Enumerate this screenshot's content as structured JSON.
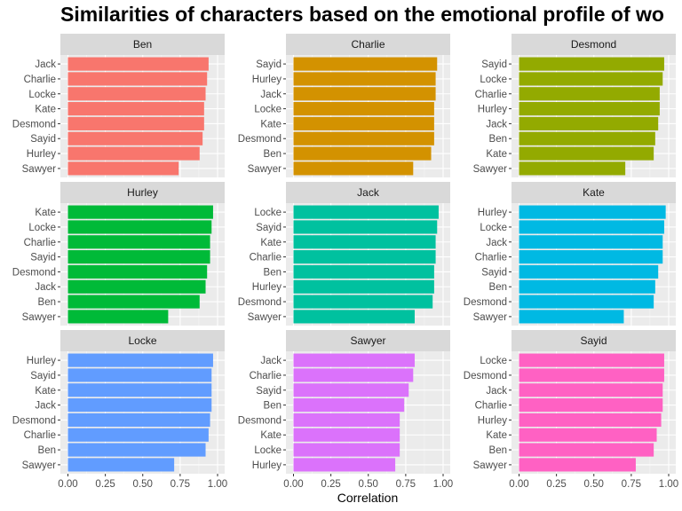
{
  "chart_data": {
    "type": "bar",
    "orientation": "horizontal",
    "title": "Similarities of characters based on the emotional profile of wo",
    "xlabel": "Correlation",
    "xlim": [
      0,
      1
    ],
    "xticks": [
      "0.00",
      "0.25",
      "0.50",
      "0.75",
      "1.00"
    ],
    "grid": true,
    "legend": "none",
    "panels": [
      {
        "name": "Ben",
        "color": "#F8766D",
        "categories": [
          "Jack",
          "Charlie",
          "Locke",
          "Kate",
          "Desmond",
          "Sayid",
          "Hurley",
          "Sawyer"
        ],
        "values": [
          0.94,
          0.93,
          0.92,
          0.91,
          0.91,
          0.9,
          0.88,
          0.74
        ]
      },
      {
        "name": "Charlie",
        "color": "#D39200",
        "categories": [
          "Sayid",
          "Hurley",
          "Jack",
          "Locke",
          "Kate",
          "Desmond",
          "Ben",
          "Sawyer"
        ],
        "values": [
          0.96,
          0.95,
          0.95,
          0.94,
          0.94,
          0.94,
          0.92,
          0.8
        ]
      },
      {
        "name": "Desmond",
        "color": "#93AA00",
        "categories": [
          "Sayid",
          "Locke",
          "Charlie",
          "Hurley",
          "Jack",
          "Ben",
          "Kate",
          "Sawyer"
        ],
        "values": [
          0.97,
          0.96,
          0.94,
          0.94,
          0.93,
          0.91,
          0.9,
          0.71
        ]
      },
      {
        "name": "Hurley",
        "color": "#00BA38",
        "categories": [
          "Kate",
          "Locke",
          "Charlie",
          "Sayid",
          "Desmond",
          "Jack",
          "Ben",
          "Sawyer"
        ],
        "values": [
          0.97,
          0.96,
          0.95,
          0.95,
          0.93,
          0.92,
          0.88,
          0.67
        ]
      },
      {
        "name": "Jack",
        "color": "#00C19F",
        "categories": [
          "Locke",
          "Sayid",
          "Kate",
          "Charlie",
          "Ben",
          "Hurley",
          "Desmond",
          "Sawyer"
        ],
        "values": [
          0.97,
          0.96,
          0.95,
          0.95,
          0.94,
          0.94,
          0.93,
          0.81
        ]
      },
      {
        "name": "Kate",
        "color": "#00B9E3",
        "categories": [
          "Hurley",
          "Locke",
          "Jack",
          "Charlie",
          "Sayid",
          "Ben",
          "Desmond",
          "Sawyer"
        ],
        "values": [
          0.98,
          0.97,
          0.96,
          0.96,
          0.93,
          0.91,
          0.9,
          0.7
        ]
      },
      {
        "name": "Locke",
        "color": "#619CFF",
        "categories": [
          "Hurley",
          "Sayid",
          "Kate",
          "Jack",
          "Desmond",
          "Charlie",
          "Ben",
          "Sawyer"
        ],
        "values": [
          0.97,
          0.96,
          0.96,
          0.96,
          0.95,
          0.94,
          0.92,
          0.71
        ]
      },
      {
        "name": "Sawyer",
        "color": "#DB72FB",
        "categories": [
          "Jack",
          "Charlie",
          "Sayid",
          "Ben",
          "Desmond",
          "Kate",
          "Locke",
          "Hurley"
        ],
        "values": [
          0.81,
          0.8,
          0.77,
          0.74,
          0.71,
          0.71,
          0.71,
          0.68
        ]
      },
      {
        "name": "Sayid",
        "color": "#FF61C3",
        "categories": [
          "Locke",
          "Desmond",
          "Jack",
          "Charlie",
          "Hurley",
          "Kate",
          "Ben",
          "Sawyer"
        ],
        "values": [
          0.97,
          0.97,
          0.96,
          0.96,
          0.95,
          0.92,
          0.9,
          0.78
        ]
      }
    ]
  }
}
